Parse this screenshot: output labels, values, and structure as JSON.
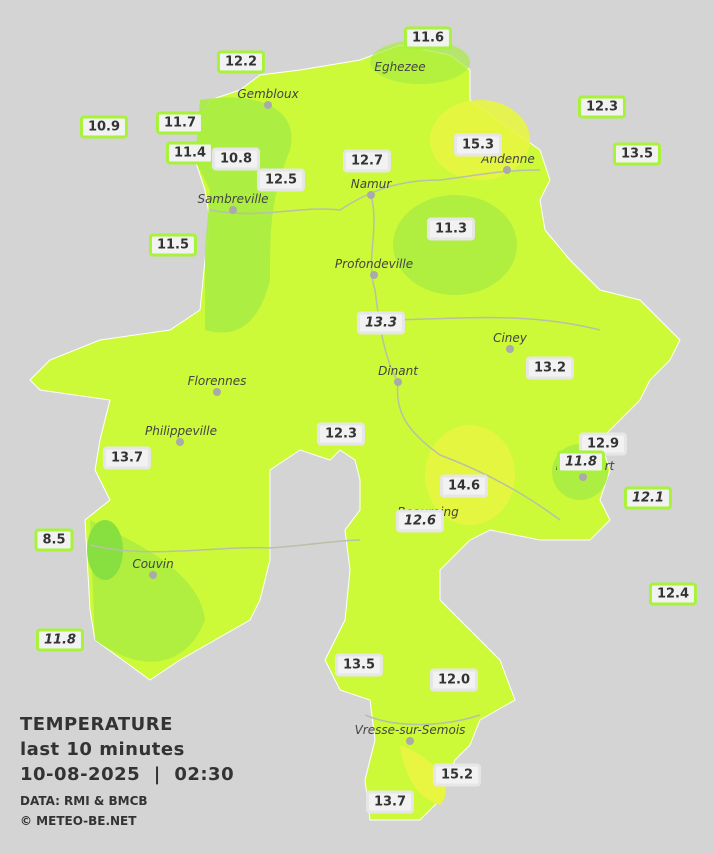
{
  "stations": [
    "11.6",
    "12.2",
    "10.9",
    "11.7",
    "12.3",
    "15.3",
    "13.5",
    "11.4",
    "10.8",
    "12.7",
    "12.5",
    "11.3",
    "11.5",
    "13.3",
    "13.2",
    "12.3",
    "12.9",
    "11.8",
    "13.7",
    "14.6",
    "12.1",
    "12.6",
    "8.5",
    "12.4",
    "11.8",
    "13.5",
    "12.0",
    "15.2",
    "13.7"
  ],
  "cities": [
    "Eghezee",
    "Gembloux",
    "Andenne",
    "Namur",
    "Sambreville",
    "Profondeville",
    "Ciney",
    "Florennes",
    "Dinant",
    "Philippeville",
    "Rochefort",
    "Beauraing",
    "Couvin",
    "Vresse-sur-Semois"
  ],
  "legend": {
    "title": "TEMPERATURE",
    "period": "last 10 minutes",
    "date": "10-08-2025",
    "separator": "|",
    "time": "02:30",
    "source": "DATA: RMI & BMCB",
    "copyright": "© METEO-BE.NET"
  }
}
